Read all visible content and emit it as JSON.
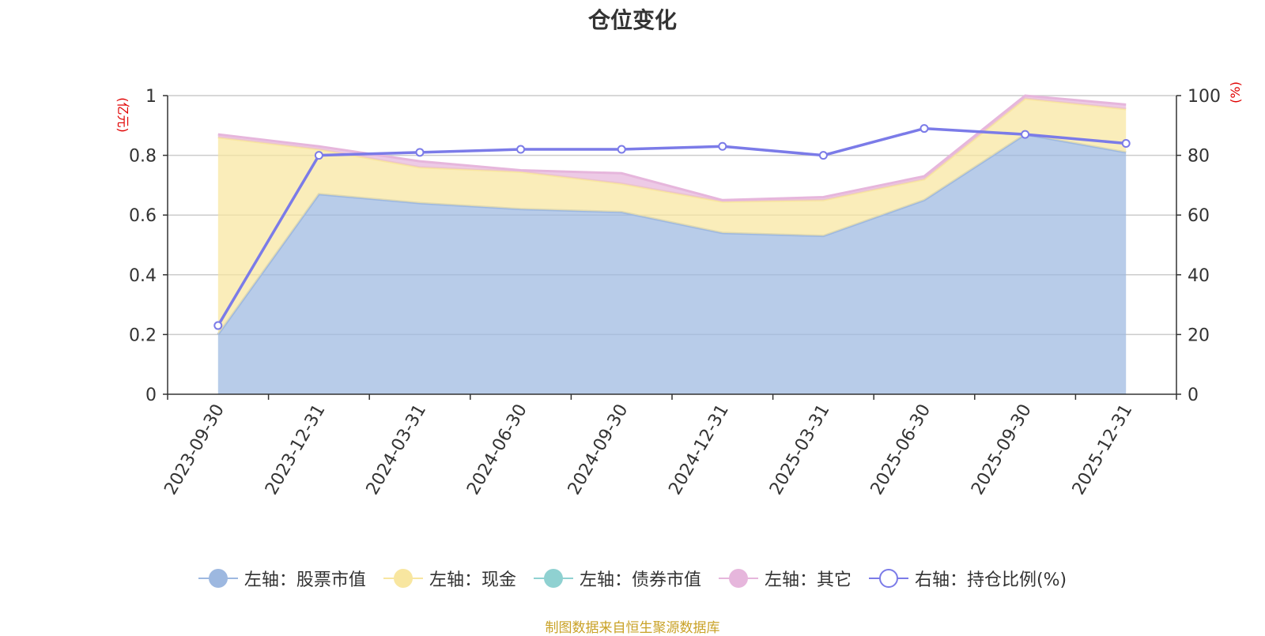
{
  "title": "仓位变化",
  "source": "制图数据来自恒生聚源数据库",
  "chart_data": {
    "type": "area",
    "categories": [
      "2023-09-30",
      "2023-12-31",
      "2024-03-31",
      "2024-06-30",
      "2024-09-30",
      "2024-12-31",
      "2025-03-31",
      "2025-06-30",
      "2025-09-30",
      "2025-12-31"
    ],
    "left_axis": {
      "unit": "(亿元)",
      "ylim": [
        0,
        1
      ],
      "ticks": [
        "0",
        "0.2",
        "0.4",
        "0.6",
        "0.8",
        "1"
      ]
    },
    "right_axis": {
      "unit": "(%)",
      "ylim": [
        0,
        100
      ],
      "ticks": [
        "0",
        "20",
        "40",
        "60",
        "80",
        "100"
      ]
    },
    "grid": true,
    "legend_position": "bottom",
    "series": [
      {
        "name": "左轴：股票市值",
        "axis": "left",
        "type": "area",
        "stack": true,
        "color": "#9db8e0",
        "values": [
          0.2,
          0.67,
          0.64,
          0.62,
          0.61,
          0.54,
          0.53,
          0.65,
          0.87,
          0.81
        ]
      },
      {
        "name": "左轴：现金",
        "axis": "left",
        "type": "area",
        "stack": true,
        "color": "#f8e6a0",
        "values": [
          0.66,
          0.15,
          0.12,
          0.125,
          0.095,
          0.105,
          0.12,
          0.07,
          0.12,
          0.145
        ]
      },
      {
        "name": "左轴：债券市值",
        "axis": "left",
        "type": "area",
        "stack": true,
        "color": "#8fd1d1",
        "values": [
          0,
          0,
          0,
          0,
          0,
          0,
          0,
          0,
          0,
          0
        ]
      },
      {
        "name": "左轴：其它",
        "axis": "left",
        "type": "area",
        "stack": true,
        "color": "#e6b6dc",
        "values": [
          0.01,
          0.01,
          0.02,
          0.005,
          0.035,
          0.005,
          0.01,
          0.01,
          0.01,
          0.015
        ]
      },
      {
        "name": "右轴：持仓比例(%)",
        "axis": "right",
        "type": "line",
        "color": "#7b7be8",
        "values": [
          23,
          80,
          81,
          82,
          82,
          83,
          80,
          89,
          87,
          84
        ]
      }
    ]
  }
}
